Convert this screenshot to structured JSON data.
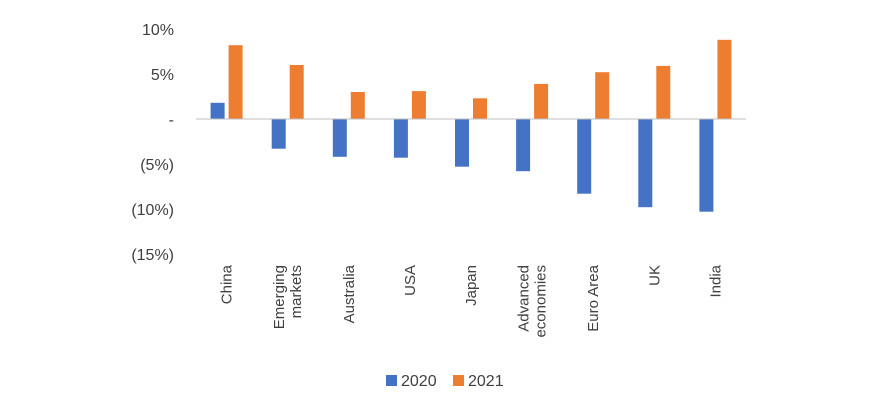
{
  "chart_data": {
    "type": "bar",
    "categories": [
      [
        "China"
      ],
      [
        "Emerging",
        "markets"
      ],
      [
        "Australia"
      ],
      [
        "USA"
      ],
      [
        "Japan"
      ],
      [
        "Advanced",
        "economies"
      ],
      [
        "Euro Area"
      ],
      [
        "UK"
      ],
      [
        "India"
      ]
    ],
    "series": [
      {
        "name": "2020",
        "color": "#4472C4",
        "values": [
          1.8,
          -3.3,
          -4.2,
          -4.3,
          -5.3,
          -5.8,
          -8.3,
          -9.8,
          -10.3
        ]
      },
      {
        "name": "2021",
        "color": "#ED7D31",
        "values": [
          8.2,
          6.0,
          3.0,
          3.1,
          2.3,
          3.9,
          5.2,
          5.9,
          8.8
        ]
      }
    ],
    "ylim": [
      -15,
      10
    ],
    "yticks": [
      {
        "value": 10,
        "label": "10%"
      },
      {
        "value": 5,
        "label": "5%"
      },
      {
        "value": 0,
        "label": "-"
      },
      {
        "value": -5,
        "label": "(5%)"
      },
      {
        "value": -10,
        "label": "(10%)"
      },
      {
        "value": -15,
        "label": "(15%)"
      }
    ],
    "grid": false,
    "legend_position": "bottom-center",
    "title": "",
    "xlabel": "",
    "ylabel": ""
  }
}
